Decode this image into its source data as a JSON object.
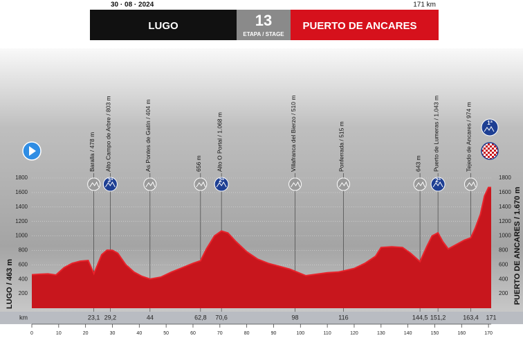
{
  "chart_data": {
    "type": "area",
    "date": "30 · 08 · 2024",
    "distance": "171 km",
    "start": "LUGO",
    "stage_number": "13",
    "stage_label": "ETAPA / STAGE",
    "finish": "PUERTO DE ANCARES",
    "start_label": "LUGO / 463 m",
    "finish_label": "PUERTO DE ANCARES / 1.670 m",
    "finish_badge": "1ª",
    "color": "#c8161d",
    "x": [
      0,
      3,
      6,
      9,
      12,
      15,
      18,
      21,
      23.1,
      26,
      28,
      30,
      32,
      35,
      38,
      41,
      44,
      48,
      52,
      56,
      60,
      62.8,
      65,
      68,
      70.6,
      73,
      76,
      80,
      84,
      88,
      92,
      96,
      98,
      102,
      106,
      110,
      114,
      116,
      120,
      124,
      128,
      130,
      134,
      138,
      141,
      144.5,
      147,
      149,
      151.2,
      153,
      155,
      158,
      161,
      163.4,
      165,
      167,
      168.5,
      170,
      171
    ],
    "values": [
      463,
      470,
      475,
      460,
      560,
      620,
      650,
      660,
      478,
      740,
      803,
      800,
      760,
      600,
      500,
      440,
      404,
      430,
      500,
      560,
      620,
      656,
      820,
      1000,
      1068,
      1040,
      920,
      780,
      680,
      620,
      580,
      540,
      510,
      450,
      470,
      490,
      500,
      515,
      550,
      620,
      720,
      840,
      850,
      840,
      760,
      643,
      850,
      1000,
      1043,
      920,
      820,
      880,
      940,
      974,
      1100,
      1300,
      1550,
      1670,
      1670
    ],
    "xlim": [
      0,
      171
    ],
    "ylim": [
      0,
      1800
    ],
    "yticks": [
      200,
      400,
      600,
      800,
      1000,
      1200,
      1400,
      1600,
      1800
    ],
    "xticks": [
      0,
      10,
      20,
      30,
      40,
      50,
      60,
      70,
      80,
      90,
      100,
      110,
      120,
      130,
      140,
      150,
      160,
      170
    ],
    "km_label": "km",
    "waypoints": [
      {
        "km": {
          "value": 23.1,
          "label": "23,1"
        },
        "label": "Baralla / 478 m"
      },
      {
        "km": {
          "value": 29.2,
          "label": "29,2"
        },
        "label": "Alto Campo de Arbre / 803 m",
        "badge": "3ª"
      },
      {
        "km": 44,
        "label": "As Pontes de Gatín / 404 m"
      },
      {
        "km": {
          "value": 62.8,
          "label": "62,8"
        },
        "label": "656 m"
      },
      {
        "km": {
          "value": 70.6,
          "label": "70,6"
        },
        "label": "Alto O Portal / 1.068 m",
        "badge": "2ª"
      },
      {
        "km": 98,
        "label": "Villafranca del Bierzo / 510 m"
      },
      {
        "km": 116,
        "label": "Ponferrada / 515 m"
      },
      {
        "km": {
          "value": 144.5,
          "label": "144,5"
        },
        "label": "643 m"
      },
      {
        "km": {
          "value": 151.2,
          "label": "151,2"
        },
        "label": "Puerto de Lumeras / 1.043 m",
        "badge": "2ª"
      },
      {
        "km": {
          "value": 163.4,
          "label": "163,4"
        },
        "label": "Tejedo de Ancares / 974 m"
      }
    ],
    "finish_km": 171
  }
}
